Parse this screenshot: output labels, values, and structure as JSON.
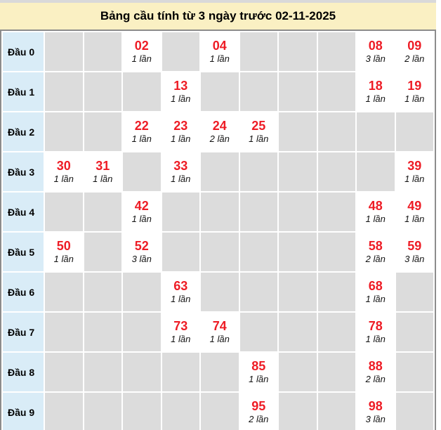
{
  "title": "Bảng cầu tính từ 3 ngày trước 02-11-2025",
  "colors": {
    "title_background": "#faf0c3",
    "row_label_background": "#d9ecf7",
    "empty_cell_background": "#dcdcdc",
    "number_red": "#ee1c25",
    "table_border": "#8c8c8c",
    "top_strip": "#d9d9d9"
  },
  "table": {
    "columns": 10,
    "rows": [
      {
        "label": "Đầu 0",
        "cells": [
          null,
          null,
          {
            "n": "02",
            "f": "1 lần"
          },
          null,
          {
            "n": "04",
            "f": "1 lần"
          },
          null,
          null,
          null,
          {
            "n": "08",
            "f": "3 lần"
          },
          {
            "n": "09",
            "f": "2 lần"
          }
        ]
      },
      {
        "label": "Đầu 1",
        "cells": [
          null,
          null,
          null,
          {
            "n": "13",
            "f": "1 lần"
          },
          null,
          null,
          null,
          null,
          {
            "n": "18",
            "f": "1 lần"
          },
          {
            "n": "19",
            "f": "1 lần"
          }
        ]
      },
      {
        "label": "Đầu 2",
        "cells": [
          null,
          null,
          {
            "n": "22",
            "f": "1 lần"
          },
          {
            "n": "23",
            "f": "1 lần"
          },
          {
            "n": "24",
            "f": "2 lần"
          },
          {
            "n": "25",
            "f": "1 lần"
          },
          null,
          null,
          null,
          null
        ]
      },
      {
        "label": "Đầu 3",
        "cells": [
          {
            "n": "30",
            "f": "1 lần"
          },
          {
            "n": "31",
            "f": "1 lần"
          },
          null,
          {
            "n": "33",
            "f": "1 lần"
          },
          null,
          null,
          null,
          null,
          null,
          {
            "n": "39",
            "f": "1 lần"
          }
        ]
      },
      {
        "label": "Đầu 4",
        "cells": [
          null,
          null,
          {
            "n": "42",
            "f": "1 lần"
          },
          null,
          null,
          null,
          null,
          null,
          {
            "n": "48",
            "f": "1 lần"
          },
          {
            "n": "49",
            "f": "1 lần"
          }
        ]
      },
      {
        "label": "Đầu 5",
        "cells": [
          {
            "n": "50",
            "f": "1 lần"
          },
          null,
          {
            "n": "52",
            "f": "3 lần"
          },
          null,
          null,
          null,
          null,
          null,
          {
            "n": "58",
            "f": "2 lần"
          },
          {
            "n": "59",
            "f": "3 lần"
          }
        ]
      },
      {
        "label": "Đầu 6",
        "cells": [
          null,
          null,
          null,
          {
            "n": "63",
            "f": "1 lần"
          },
          null,
          null,
          null,
          null,
          {
            "n": "68",
            "f": "1 lần"
          },
          null
        ]
      },
      {
        "label": "Đầu 7",
        "cells": [
          null,
          null,
          null,
          {
            "n": "73",
            "f": "1 lần"
          },
          {
            "n": "74",
            "f": "1 lần"
          },
          null,
          null,
          null,
          {
            "n": "78",
            "f": "1 lần"
          },
          null
        ]
      },
      {
        "label": "Đầu 8",
        "cells": [
          null,
          null,
          null,
          null,
          null,
          {
            "n": "85",
            "f": "1 lần"
          },
          null,
          null,
          {
            "n": "88",
            "f": "2 lần"
          },
          null
        ]
      },
      {
        "label": "Đầu 9",
        "cells": [
          null,
          null,
          null,
          null,
          null,
          {
            "n": "95",
            "f": "2 lần"
          },
          null,
          null,
          {
            "n": "98",
            "f": "3 lần"
          },
          null
        ]
      }
    ]
  },
  "chart_data": {
    "type": "table",
    "title": "Bảng cầu tính từ 3 ngày trước 02-11-2025",
    "row_labels": [
      "Đầu 0",
      "Đầu 1",
      "Đầu 2",
      "Đầu 3",
      "Đầu 4",
      "Đầu 5",
      "Đầu 6",
      "Đầu 7",
      "Đầu 8",
      "Đầu 9"
    ],
    "column_count": 10,
    "entries": [
      {
        "row": "Đầu 0",
        "col": 3,
        "number": "02",
        "count": 1
      },
      {
        "row": "Đầu 0",
        "col": 5,
        "number": "04",
        "count": 1
      },
      {
        "row": "Đầu 0",
        "col": 9,
        "number": "08",
        "count": 3
      },
      {
        "row": "Đầu 0",
        "col": 10,
        "number": "09",
        "count": 2
      },
      {
        "row": "Đầu 1",
        "col": 4,
        "number": "13",
        "count": 1
      },
      {
        "row": "Đầu 1",
        "col": 9,
        "number": "18",
        "count": 1
      },
      {
        "row": "Đầu 1",
        "col": 10,
        "number": "19",
        "count": 1
      },
      {
        "row": "Đầu 2",
        "col": 3,
        "number": "22",
        "count": 1
      },
      {
        "row": "Đầu 2",
        "col": 4,
        "number": "23",
        "count": 1
      },
      {
        "row": "Đầu 2",
        "col": 5,
        "number": "24",
        "count": 2
      },
      {
        "row": "Đầu 2",
        "col": 6,
        "number": "25",
        "count": 1
      },
      {
        "row": "Đầu 3",
        "col": 1,
        "number": "30",
        "count": 1
      },
      {
        "row": "Đầu 3",
        "col": 2,
        "number": "31",
        "count": 1
      },
      {
        "row": "Đầu 3",
        "col": 4,
        "number": "33",
        "count": 1
      },
      {
        "row": "Đầu 3",
        "col": 10,
        "number": "39",
        "count": 1
      },
      {
        "row": "Đầu 4",
        "col": 3,
        "number": "42",
        "count": 1
      },
      {
        "row": "Đầu 4",
        "col": 9,
        "number": "48",
        "count": 1
      },
      {
        "row": "Đầu 4",
        "col": 10,
        "number": "49",
        "count": 1
      },
      {
        "row": "Đầu 5",
        "col": 1,
        "number": "50",
        "count": 1
      },
      {
        "row": "Đầu 5",
        "col": 3,
        "number": "52",
        "count": 3
      },
      {
        "row": "Đầu 5",
        "col": 9,
        "number": "58",
        "count": 2
      },
      {
        "row": "Đầu 5",
        "col": 10,
        "number": "59",
        "count": 3
      },
      {
        "row": "Đầu 6",
        "col": 4,
        "number": "63",
        "count": 1
      },
      {
        "row": "Đầu 6",
        "col": 9,
        "number": "68",
        "count": 1
      },
      {
        "row": "Đầu 7",
        "col": 4,
        "number": "73",
        "count": 1
      },
      {
        "row": "Đầu 7",
        "col": 5,
        "number": "74",
        "count": 1
      },
      {
        "row": "Đầu 7",
        "col": 9,
        "number": "78",
        "count": 1
      },
      {
        "row": "Đầu 8",
        "col": 6,
        "number": "85",
        "count": 1
      },
      {
        "row": "Đầu 8",
        "col": 9,
        "number": "88",
        "count": 2
      },
      {
        "row": "Đầu 9",
        "col": 6,
        "number": "95",
        "count": 2
      },
      {
        "row": "Đầu 9",
        "col": 9,
        "number": "98",
        "count": 3
      }
    ]
  }
}
